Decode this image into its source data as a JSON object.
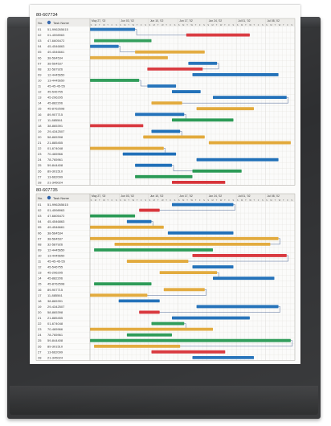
{
  "charts": [
    {
      "chart_id": "80-607734",
      "columns": {
        "no": "No.",
        "name": "Task Name"
      },
      "months": [
        "May 27, '02",
        "Jun 03, '02",
        "Jun 10, '02",
        "Jun 17, '02",
        "Jun 24, '02",
        "Jul 01, '02",
        "Jul 08, '02"
      ],
      "tasks": [
        {
          "no": "01",
          "name": "51-996265615",
          "bar": [
            0.0,
            0.22
          ],
          "color": "#1f6fb8"
        },
        {
          "no": "02",
          "name": "01-4598963",
          "bar": [
            0.47,
            0.78
          ],
          "color": "#d8343a"
        },
        {
          "no": "03",
          "name": "47-6605472",
          "bar": [
            0.02,
            0.3
          ],
          "color": "#2a9a55"
        },
        {
          "no": "04",
          "name": "45-4546863",
          "bar": [
            0.0,
            0.14
          ],
          "color": "#1f6fb8"
        },
        {
          "no": "05",
          "name": "49-4546661",
          "bar": [
            0.22,
            0.56
          ],
          "color": "#e2a93a"
        },
        {
          "no": "06",
          "name": "38-564534",
          "bar": [
            0.0,
            0.38
          ],
          "color": "#e2a93a"
        },
        {
          "no": "07",
          "name": "38-564537",
          "bar": [
            0.48,
            0.62
          ],
          "color": "#1f6fb8"
        },
        {
          "no": "08",
          "name": "32-587926",
          "bar": [
            0.28,
            0.55
          ],
          "color": "#d8343a"
        },
        {
          "no": "09",
          "name": "12-4445650",
          "bar": [
            0.5,
            0.92
          ],
          "color": "#1f6fb8"
        },
        {
          "no": "10",
          "name": "13-4445650",
          "bar": [
            0.0,
            0.24
          ],
          "color": "#2a9a55"
        },
        {
          "no": "11",
          "name": "45-45-45-55",
          "bar": [
            0.28,
            0.42
          ],
          "color": "#1f6fb8"
        },
        {
          "no": "12",
          "name": "45-546755",
          "bar": [
            0.4,
            0.54
          ],
          "color": "#1f6fb8"
        },
        {
          "no": "13",
          "name": "45-296295",
          "bar": [
            0.6,
            0.96
          ],
          "color": "#1f6fb8"
        },
        {
          "no": "14",
          "name": "45-882206",
          "bar": [
            0.3,
            0.45
          ],
          "color": "#e2a93a"
        },
        {
          "no": "15",
          "name": "45-8762598",
          "bar": [
            0.52,
            0.8
          ],
          "color": "#e2a93a"
        },
        {
          "no": "16",
          "name": "89-907715",
          "bar": [
            0.22,
            0.46
          ],
          "color": "#1f6fb8"
        },
        {
          "no": "17",
          "name": "11-885561",
          "bar": [
            0.4,
            0.7
          ],
          "color": "#2a9a55"
        },
        {
          "no": "18",
          "name": "38-865391",
          "bar": [
            0.0,
            0.26
          ],
          "color": "#d8343a"
        },
        {
          "no": "19",
          "name": "29-4342507",
          "bar": [
            0.3,
            0.44
          ],
          "color": "#1f6fb8"
        },
        {
          "no": "20",
          "name": "58-865398",
          "bar": [
            0.26,
            0.56
          ],
          "color": "#e2a93a"
        },
        {
          "no": "21",
          "name": "21-885455",
          "bar": [
            0.58,
            0.98
          ],
          "color": "#e2a93a"
        },
        {
          "no": "22",
          "name": "01-674048",
          "bar": [
            0.0,
            0.36
          ],
          "color": "#e2a93a"
        },
        {
          "no": "23",
          "name": "70-465966",
          "bar": [
            0.16,
            0.42
          ],
          "color": "#1f6fb8"
        },
        {
          "no": "24",
          "name": "78-765961",
          "bar": [
            0.52,
            0.92
          ],
          "color": "#1f6fb8"
        },
        {
          "no": "25",
          "name": "59-844408",
          "bar": [
            0.22,
            0.4
          ],
          "color": "#1f6fb8"
        },
        {
          "no": "26",
          "name": "89-301510",
          "bar": [
            0.5,
            0.74
          ],
          "color": "#2a9a55"
        },
        {
          "no": "27",
          "name": "13-662099",
          "bar": [
            0.22,
            0.5
          ],
          "color": "#2a9a55"
        },
        {
          "no": "28",
          "name": "21-345024",
          "bar": [
            0.4,
            0.66
          ],
          "color": "#d8343a"
        }
      ]
    },
    {
      "chart_id": "80-607735",
      "columns": {
        "no": "No.",
        "name": "Task Name"
      },
      "months": [
        "May 27, '02",
        "Jun 03, '02",
        "Jun 10, '02",
        "Jun 17, '02",
        "Jun 24, '02",
        "Jul 01, '02",
        "Jul 08, '02"
      ],
      "tasks": [
        {
          "no": "01",
          "name": "51-996265615",
          "bar": [
            0.4,
            0.7
          ],
          "color": "#1f6fb8"
        },
        {
          "no": "02",
          "name": "01-4598963",
          "bar": [
            0.24,
            0.34
          ],
          "color": "#d8343a"
        },
        {
          "no": "03",
          "name": "47-6605472",
          "bar": [
            0.0,
            0.22
          ],
          "color": "#2a9a55"
        },
        {
          "no": "04",
          "name": "45-4546863",
          "bar": [
            0.18,
            0.3
          ],
          "color": "#1f6fb8"
        },
        {
          "no": "05",
          "name": "49-4546661",
          "bar": [
            0.0,
            0.36
          ],
          "color": "#e2a93a"
        },
        {
          "no": "06",
          "name": "38-564534",
          "bar": [
            0.38,
            0.7
          ],
          "color": "#1f6fb8"
        },
        {
          "no": "07",
          "name": "38-564537",
          "bar": [
            0.0,
            0.92
          ],
          "color": "#e2a93a"
        },
        {
          "no": "08",
          "name": "32-587926",
          "bar": [
            0.12,
            0.88
          ],
          "color": "#e2a93a"
        },
        {
          "no": "09",
          "name": "12-4445650",
          "bar": [
            0.02,
            0.6
          ],
          "color": "#2a9a55"
        },
        {
          "no": "10",
          "name": "13-4445650",
          "bar": [
            0.5,
            0.96
          ],
          "color": "#d8343a"
        },
        {
          "no": "11",
          "name": "45-45-45-55",
          "bar": [
            0.18,
            0.48
          ],
          "color": "#e2a93a"
        },
        {
          "no": "12",
          "name": "45-546755",
          "bar": [
            0.5,
            0.7
          ],
          "color": "#1f6fb8"
        },
        {
          "no": "13",
          "name": "45-296295",
          "bar": [
            0.34,
            0.62
          ],
          "color": "#e2a93a"
        },
        {
          "no": "14",
          "name": "45-882206",
          "bar": [
            0.6,
            0.9
          ],
          "color": "#1f6fb8"
        },
        {
          "no": "15",
          "name": "45-8762598",
          "bar": [
            0.02,
            0.3
          ],
          "color": "#2a9a55"
        },
        {
          "no": "16",
          "name": "89-907715",
          "bar": [
            0.36,
            0.56
          ],
          "color": "#e2a93a"
        },
        {
          "no": "17",
          "name": "11-885561",
          "bar": [
            0.0,
            0.28
          ],
          "color": "#e2a93a"
        },
        {
          "no": "18",
          "name": "38-865391",
          "bar": [
            0.14,
            0.34
          ],
          "color": "#1f6fb8"
        },
        {
          "no": "19",
          "name": "29-4342507",
          "bar": [
            0.52,
            0.92
          ],
          "color": "#1f6fb8"
        },
        {
          "no": "20",
          "name": "58-865398",
          "bar": [
            0.24,
            0.34
          ],
          "color": "#d8343a"
        },
        {
          "no": "21",
          "name": "21-885455",
          "bar": [
            0.4,
            0.78
          ],
          "color": "#1f6fb8"
        },
        {
          "no": "22",
          "name": "01-674048",
          "bar": [
            0.3,
            0.46
          ],
          "color": "#2a9a55"
        },
        {
          "no": "23",
          "name": "70-465966",
          "bar": [
            0.0,
            0.6
          ],
          "color": "#e2a93a"
        },
        {
          "no": "24",
          "name": "78-765961",
          "bar": [
            0.18,
            0.4
          ],
          "color": "#2a9a55"
        },
        {
          "no": "25",
          "name": "59-844408",
          "bar": [
            0.0,
            0.98
          ],
          "color": "#2a9a55"
        },
        {
          "no": "26",
          "name": "89-301510",
          "bar": [
            0.02,
            0.44
          ],
          "color": "#e2a93a"
        },
        {
          "no": "27",
          "name": "13-662099",
          "bar": [
            0.3,
            0.66
          ],
          "color": "#d8343a"
        },
        {
          "no": "28",
          "name": "21-345024",
          "bar": [
            0.5,
            0.8
          ],
          "color": "#1f6fb8"
        }
      ]
    }
  ]
}
